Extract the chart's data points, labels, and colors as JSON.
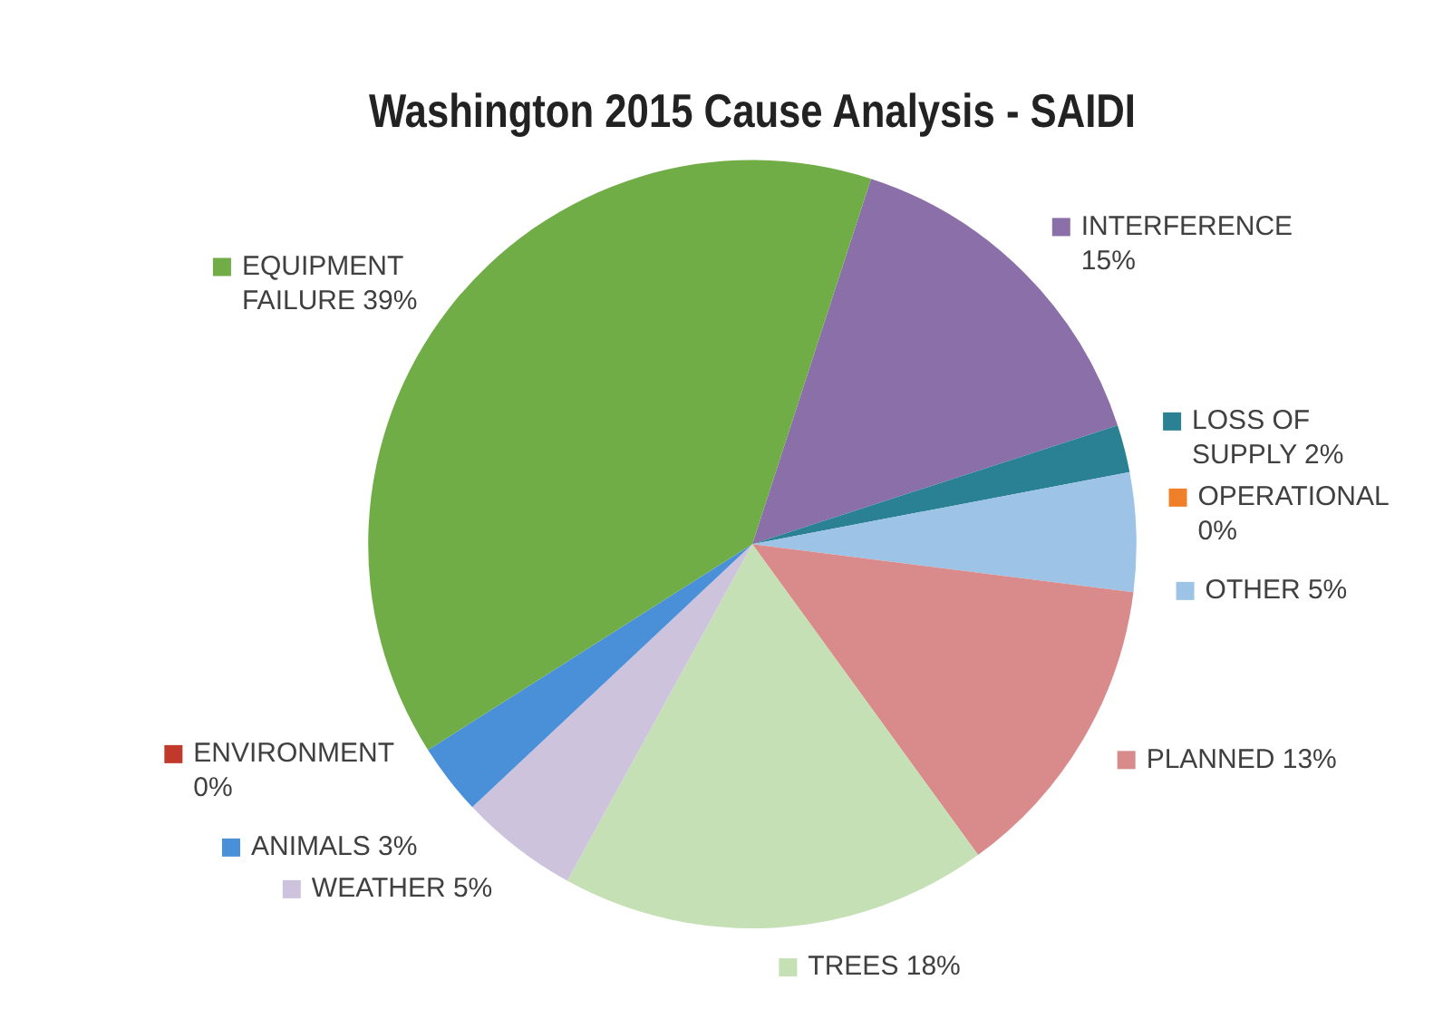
{
  "chart_data": {
    "type": "pie",
    "title": "Washington 2015 Cause Analysis - SAIDI",
    "categories": [
      "INTERFERENCE",
      "LOSS OF SUPPLY",
      "OPERATIONAL",
      "OTHER",
      "PLANNED",
      "TREES",
      "WEATHER",
      "ANIMALS",
      "ENVIRONMENT",
      "EQUIPMENT FAILURE"
    ],
    "values": [
      15,
      2,
      0,
      5,
      13,
      18,
      5,
      3,
      0,
      39
    ],
    "value_labels": [
      "15%",
      "2%",
      "0%",
      "5%",
      "13%",
      "18%",
      "5%",
      "3%",
      "0%",
      "39%"
    ],
    "colors": [
      "#8a6fa8",
      "#2a8193",
      "#f07f2a",
      "#9dc3e6",
      "#d98b8b",
      "#c5e0b4",
      "#cdc3dc",
      "#4a90d9",
      "#c0392b",
      "#70ad47"
    ],
    "legend": "right"
  }
}
